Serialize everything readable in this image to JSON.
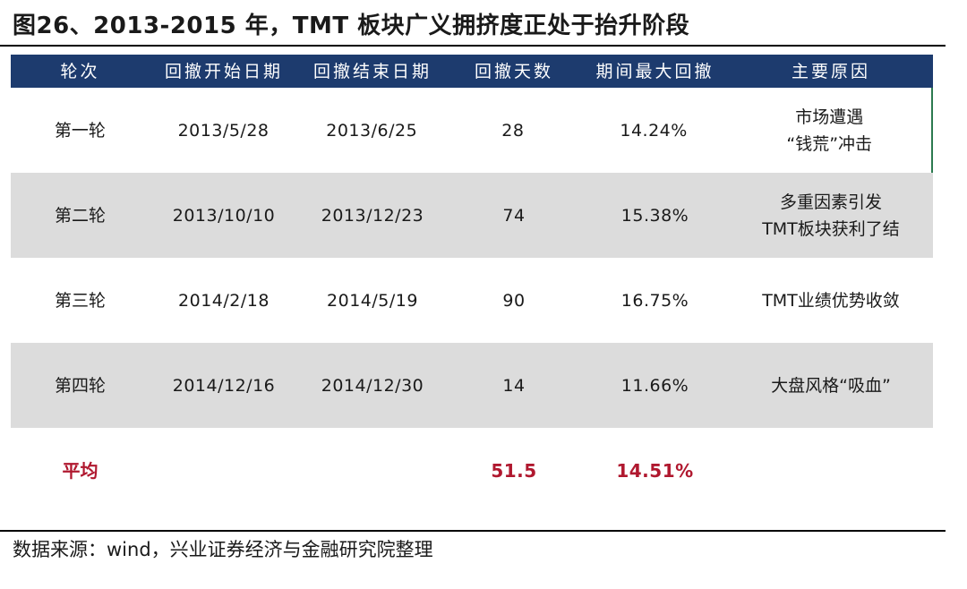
{
  "title": "图26、2013-2015 年，TMT 板块广义拥挤度正处于抬升阶段",
  "table": {
    "headers": [
      "轮次",
      "回撤开始日期",
      "回撤结束日期",
      "回撤天数",
      "期间最大回撤",
      "主要原因"
    ],
    "rows": [
      [
        "第一轮",
        "2013/5/28",
        "2013/6/25",
        "28",
        "14.24%",
        "市场遭遇\n“钱荒”冲击"
      ],
      [
        "第二轮",
        "2013/10/10",
        "2013/12/23",
        "74",
        "15.38%",
        "多重因素引发\nTMT板块获利了结"
      ],
      [
        "第三轮",
        "2014/2/18",
        "2014/5/19",
        "90",
        "16.75%",
        "TMT业绩优势收敛"
      ],
      [
        "第四轮",
        "2014/12/16",
        "2014/12/30",
        "14",
        "11.66%",
        "大盘风格“吸血”"
      ]
    ],
    "average": {
      "label": "平均",
      "days": "51.5",
      "drawdown": "14.51%"
    }
  },
  "source": "数据来源：wind，兴业证券经济与金融研究院整理",
  "colors": {
    "header_bg": "#1d3b6e",
    "header_text": "#ffffff",
    "shaded_row": "#dcdcdc",
    "average_text": "#b0182f",
    "accent_border": "#2c7a4f"
  }
}
